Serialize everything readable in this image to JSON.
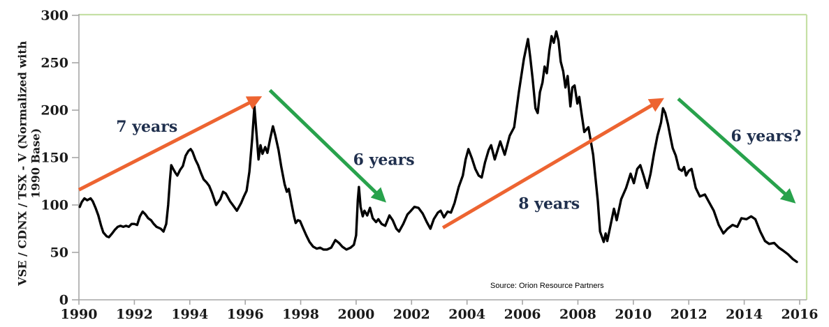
{
  "chart_data": {
    "type": "line",
    "title": "",
    "xlabel": "",
    "ylabel": "VSE / CDNX / TSX - V (Normalized with 1990 Base)",
    "ylabel_lines": [
      "VSE / CDNX / TSX - V (Normalized with",
      "1990 Base)"
    ],
    "source_note": "Source: Orion Resource Partners",
    "x_range": [
      1990,
      2016
    ],
    "ylim": [
      0,
      300
    ],
    "y_ticks": [
      0,
      50,
      100,
      150,
      200,
      250,
      300
    ],
    "x_ticks": [
      1990,
      1992,
      1994,
      1996,
      1998,
      2000,
      2002,
      2004,
      2006,
      2008,
      2010,
      2012,
      2014,
      2016
    ],
    "grid": false,
    "legend": "none",
    "axis_color": "#a6a6a6",
    "tick_label_color": "#1a1a1a",
    "plot_border_color": "#c5e0a5",
    "series": [
      {
        "name": "VSE / CDNX / TSX-V index (1990 = 100)",
        "color": "#000000",
        "points": [
          [
            1990.03,
            98
          ],
          [
            1990.1,
            103
          ],
          [
            1990.2,
            107
          ],
          [
            1990.3,
            105
          ],
          [
            1990.42,
            107
          ],
          [
            1990.5,
            104
          ],
          [
            1990.6,
            97
          ],
          [
            1990.7,
            89
          ],
          [
            1990.8,
            78
          ],
          [
            1990.88,
            71
          ],
          [
            1991.0,
            67
          ],
          [
            1991.08,
            66
          ],
          [
            1991.2,
            70
          ],
          [
            1991.3,
            74
          ],
          [
            1991.4,
            77
          ],
          [
            1991.5,
            78
          ],
          [
            1991.6,
            77
          ],
          [
            1991.7,
            78
          ],
          [
            1991.8,
            77
          ],
          [
            1991.9,
            80
          ],
          [
            1992.0,
            80
          ],
          [
            1992.1,
            79
          ],
          [
            1992.2,
            88
          ],
          [
            1992.3,
            93
          ],
          [
            1992.4,
            90
          ],
          [
            1992.5,
            86
          ],
          [
            1992.6,
            84
          ],
          [
            1992.7,
            80
          ],
          [
            1992.8,
            77
          ],
          [
            1992.95,
            75
          ],
          [
            1993.05,
            72
          ],
          [
            1993.15,
            80
          ],
          [
            1993.22,
            100
          ],
          [
            1993.28,
            125
          ],
          [
            1993.33,
            142
          ],
          [
            1993.4,
            138
          ],
          [
            1993.48,
            134
          ],
          [
            1993.55,
            131
          ],
          [
            1993.65,
            137
          ],
          [
            1993.75,
            141
          ],
          [
            1993.85,
            152
          ],
          [
            1993.95,
            157
          ],
          [
            1994.03,
            159
          ],
          [
            1994.1,
            156
          ],
          [
            1994.2,
            148
          ],
          [
            1994.3,
            142
          ],
          [
            1994.4,
            134
          ],
          [
            1994.5,
            127
          ],
          [
            1994.6,
            124
          ],
          [
            1994.7,
            120
          ],
          [
            1994.8,
            113
          ],
          [
            1994.95,
            100
          ],
          [
            1995.1,
            106
          ],
          [
            1995.2,
            114
          ],
          [
            1995.3,
            112
          ],
          [
            1995.45,
            104
          ],
          [
            1995.55,
            100
          ],
          [
            1995.7,
            94
          ],
          [
            1995.85,
            102
          ],
          [
            1995.95,
            109
          ],
          [
            1996.05,
            115
          ],
          [
            1996.15,
            135
          ],
          [
            1996.25,
            170
          ],
          [
            1996.33,
            204
          ],
          [
            1996.4,
            178
          ],
          [
            1996.48,
            148
          ],
          [
            1996.55,
            163
          ],
          [
            1996.62,
            154
          ],
          [
            1996.72,
            161
          ],
          [
            1996.8,
            155
          ],
          [
            1996.9,
            170
          ],
          [
            1997.0,
            183
          ],
          [
            1997.08,
            174
          ],
          [
            1997.2,
            158
          ],
          [
            1997.3,
            140
          ],
          [
            1997.42,
            122
          ],
          [
            1997.5,
            114
          ],
          [
            1997.57,
            117
          ],
          [
            1997.68,
            100
          ],
          [
            1997.76,
            88
          ],
          [
            1997.82,
            81
          ],
          [
            1997.9,
            84
          ],
          [
            1997.98,
            83
          ],
          [
            1998.08,
            76
          ],
          [
            1998.2,
            68
          ],
          [
            1998.32,
            61
          ],
          [
            1998.45,
            56
          ],
          [
            1998.58,
            54
          ],
          [
            1998.7,
            55
          ],
          [
            1998.82,
            53
          ],
          [
            1998.95,
            53
          ],
          [
            1999.1,
            55
          ],
          [
            1999.25,
            63
          ],
          [
            1999.38,
            60
          ],
          [
            1999.5,
            56
          ],
          [
            1999.65,
            53
          ],
          [
            1999.8,
            55
          ],
          [
            1999.92,
            58
          ],
          [
            2000.0,
            68
          ],
          [
            2000.06,
            105
          ],
          [
            2000.1,
            119
          ],
          [
            2000.16,
            98
          ],
          [
            2000.24,
            88
          ],
          [
            2000.3,
            94
          ],
          [
            2000.4,
            89
          ],
          [
            2000.5,
            97
          ],
          [
            2000.6,
            86
          ],
          [
            2000.72,
            82
          ],
          [
            2000.8,
            85
          ],
          [
            2000.92,
            80
          ],
          [
            2001.05,
            78
          ],
          [
            2001.2,
            89
          ],
          [
            2001.32,
            84
          ],
          [
            2001.45,
            75
          ],
          [
            2001.55,
            72
          ],
          [
            2001.7,
            80
          ],
          [
            2001.85,
            90
          ],
          [
            2001.95,
            93
          ],
          [
            2002.1,
            98
          ],
          [
            2002.25,
            97
          ],
          [
            2002.4,
            91
          ],
          [
            2002.55,
            82
          ],
          [
            2002.68,
            75
          ],
          [
            2002.8,
            85
          ],
          [
            2002.95,
            92
          ],
          [
            2003.05,
            94
          ],
          [
            2003.17,
            87
          ],
          [
            2003.3,
            93
          ],
          [
            2003.42,
            92
          ],
          [
            2003.55,
            102
          ],
          [
            2003.7,
            119
          ],
          [
            2003.85,
            131
          ],
          [
            2003.95,
            148
          ],
          [
            2004.05,
            159
          ],
          [
            2004.18,
            149
          ],
          [
            2004.3,
            138
          ],
          [
            2004.42,
            131
          ],
          [
            2004.53,
            129
          ],
          [
            2004.65,
            145
          ],
          [
            2004.78,
            158
          ],
          [
            2004.87,
            163
          ],
          [
            2005.0,
            148
          ],
          [
            2005.2,
            167
          ],
          [
            2005.36,
            153
          ],
          [
            2005.54,
            173
          ],
          [
            2005.7,
            182
          ],
          [
            2005.87,
            219
          ],
          [
            2006.05,
            254
          ],
          [
            2006.2,
            275
          ],
          [
            2006.28,
            256
          ],
          [
            2006.37,
            232
          ],
          [
            2006.47,
            202
          ],
          [
            2006.55,
            197
          ],
          [
            2006.63,
            219
          ],
          [
            2006.72,
            229
          ],
          [
            2006.8,
            246
          ],
          [
            2006.88,
            239
          ],
          [
            2006.97,
            263
          ],
          [
            2007.05,
            278
          ],
          [
            2007.13,
            271
          ],
          [
            2007.22,
            283
          ],
          [
            2007.3,
            273
          ],
          [
            2007.38,
            251
          ],
          [
            2007.47,
            241
          ],
          [
            2007.55,
            224
          ],
          [
            2007.63,
            236
          ],
          [
            2007.73,
            204
          ],
          [
            2007.8,
            224
          ],
          [
            2007.88,
            226
          ],
          [
            2007.98,
            207
          ],
          [
            2008.05,
            214
          ],
          [
            2008.13,
            197
          ],
          [
            2008.23,
            177
          ],
          [
            2008.38,
            182
          ],
          [
            2008.55,
            153
          ],
          [
            2008.72,
            104
          ],
          [
            2008.8,
            72
          ],
          [
            2008.93,
            61
          ],
          [
            2009.0,
            70
          ],
          [
            2009.06,
            62
          ],
          [
            2009.18,
            79
          ],
          [
            2009.3,
            96
          ],
          [
            2009.4,
            84
          ],
          [
            2009.56,
            106
          ],
          [
            2009.74,
            118
          ],
          [
            2009.9,
            133
          ],
          [
            2010.02,
            123
          ],
          [
            2010.14,
            138
          ],
          [
            2010.25,
            142
          ],
          [
            2010.37,
            131
          ],
          [
            2010.5,
            118
          ],
          [
            2010.62,
            133
          ],
          [
            2010.75,
            155
          ],
          [
            2010.87,
            173
          ],
          [
            2011.0,
            187
          ],
          [
            2011.07,
            202
          ],
          [
            2011.15,
            197
          ],
          [
            2011.25,
            185
          ],
          [
            2011.33,
            173
          ],
          [
            2011.42,
            160
          ],
          [
            2011.53,
            152
          ],
          [
            2011.65,
            138
          ],
          [
            2011.75,
            136
          ],
          [
            2011.83,
            140
          ],
          [
            2011.9,
            131
          ],
          [
            2012.0,
            136
          ],
          [
            2012.1,
            138
          ],
          [
            2012.25,
            118
          ],
          [
            2012.4,
            109
          ],
          [
            2012.58,
            111
          ],
          [
            2012.75,
            102
          ],
          [
            2012.9,
            94
          ],
          [
            2013.08,
            79
          ],
          [
            2013.25,
            70
          ],
          [
            2013.4,
            75
          ],
          [
            2013.58,
            79
          ],
          [
            2013.75,
            77
          ],
          [
            2013.9,
            86
          ],
          [
            2014.08,
            85
          ],
          [
            2014.25,
            88
          ],
          [
            2014.4,
            85
          ],
          [
            2014.58,
            72
          ],
          [
            2014.75,
            62
          ],
          [
            2014.9,
            59
          ],
          [
            2015.08,
            60
          ],
          [
            2015.25,
            55
          ],
          [
            2015.4,
            52
          ],
          [
            2015.58,
            48
          ],
          [
            2015.75,
            43
          ],
          [
            2015.9,
            40
          ]
        ]
      }
    ],
    "annotations": {
      "label_color": "#1f2f4d",
      "arrow_up_color": "#ed6431",
      "arrow_down_color": "#28a24c",
      "arrows": [
        {
          "name": "bull-market-arrow-1",
          "label": "7 years",
          "direction": "up",
          "color": "#ed6431",
          "from": [
            1990.0,
            116
          ],
          "to": [
            1996.5,
            213
          ]
        },
        {
          "name": "bear-market-arrow-1",
          "label": "6 years",
          "direction": "down",
          "color": "#28a24c",
          "from": [
            1996.89,
            221
          ],
          "to": [
            2001.0,
            105
          ]
        },
        {
          "name": "bull-market-arrow-2",
          "label": "8 years",
          "direction": "up",
          "color": "#ed6431",
          "from": [
            2003.13,
            76
          ],
          "to": [
            2011.01,
            211
          ]
        },
        {
          "name": "bear-market-arrow-2",
          "label": "6 years?",
          "direction": "down",
          "color": "#28a24c",
          "from": [
            2011.62,
            212
          ],
          "to": [
            2015.77,
            104
          ]
        }
      ],
      "labels": [
        {
          "text": "7 years",
          "x": 1992.45,
          "y": 183
        },
        {
          "text": "6 years",
          "x": 2001.0,
          "y": 148
        },
        {
          "text": "8 years",
          "x": 2006.96,
          "y": 102
        },
        {
          "text": "6 years?",
          "x": 2014.79,
          "y": 173
        }
      ]
    }
  }
}
